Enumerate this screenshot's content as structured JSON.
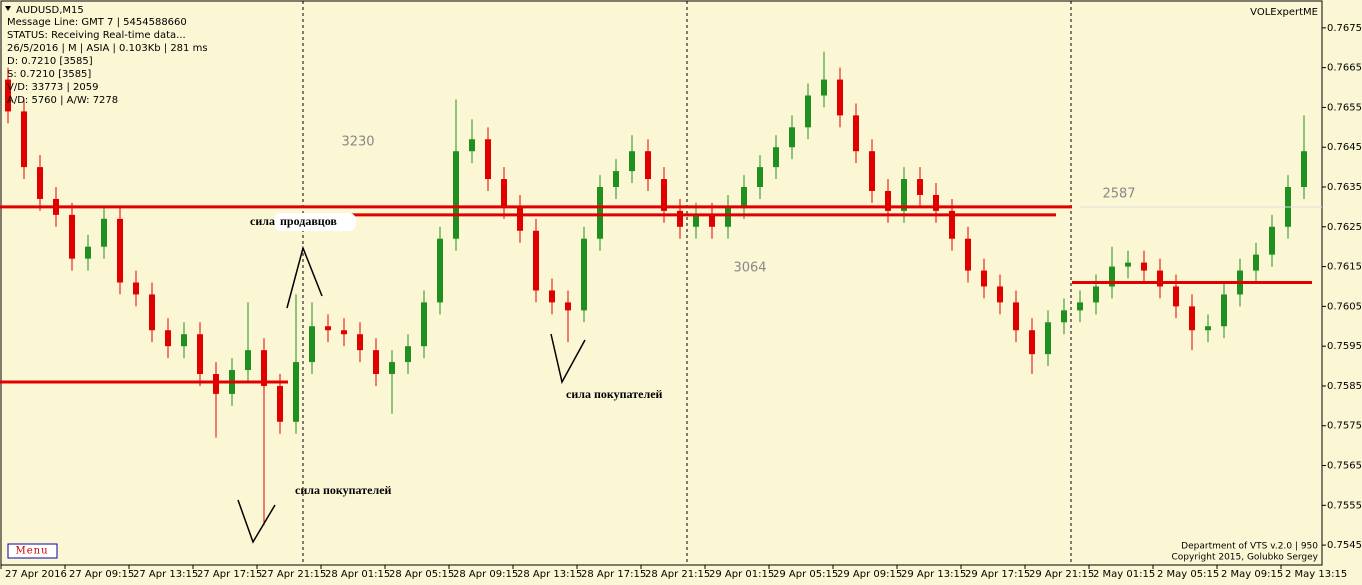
{
  "chart_data": {
    "type": "candlestick",
    "symbol": "AUDUSD,M15",
    "info_lines": [
      "Message Line: GMT 7 | 5454588660",
      "STATUS:  Receiving Real-time data...",
      "26/5/2016 | M | ASIA | 0.103Kb | 281 ms",
      "D: 0.7210  [3585]",
      "S: 0.7210  [3585]",
      "V/D: 33773 | 2059",
      "A/D: 5760 | A/W: 7278"
    ],
    "brand": "VOLExpertME",
    "footer": [
      "Department of VTS  v.2.0 | 950",
      "Copyright 2015, Golubko Sergey"
    ],
    "menu": "Menu",
    "up_color": "#1f8f1f",
    "down_color": "#e00000",
    "level_color": "#e00000",
    "ylim": [
      0.754,
      0.7682
    ],
    "yticks": [
      0.7545,
      0.7555,
      0.7565,
      0.7575,
      0.7585,
      0.7595,
      0.7605,
      0.7615,
      0.7625,
      0.7635,
      0.7645,
      0.7655,
      0.7665,
      0.7675
    ],
    "x_labels": [
      "27 Apr 2016",
      "27 Apr 09:15",
      "27 Apr 13:15",
      "27 Apr 17:15",
      "27 Apr 21:15",
      "28 Apr 01:15",
      "28 Apr 05:15",
      "28 Apr 09:15",
      "28 Apr 13:15",
      "28 Apr 17:15",
      "28 Apr 21:15",
      "29 Apr 01:15",
      "29 Apr 05:15",
      "29 Apr 09:15",
      "29 Apr 13:15",
      "29 Apr 17:15",
      "29 Apr 21:15",
      "2 May 01:15",
      "2 May 05:15",
      "2 May 09:15",
      "2 May 13:15"
    ],
    "ohlc": [
      [
        0.7662,
        0.7665,
        0.7651,
        0.7654
      ],
      [
        0.7654,
        0.7657,
        0.7637,
        0.764
      ],
      [
        0.764,
        0.7643,
        0.7629,
        0.7632
      ],
      [
        0.7632,
        0.7635,
        0.7625,
        0.7628
      ],
      [
        0.7628,
        0.7631,
        0.7614,
        0.7617
      ],
      [
        0.7617,
        0.7623,
        0.7614,
        0.762
      ],
      [
        0.762,
        0.763,
        0.7617,
        0.7627
      ],
      [
        0.7627,
        0.763,
        0.7608,
        0.7611
      ],
      [
        0.7611,
        0.7614,
        0.7605,
        0.7608
      ],
      [
        0.7608,
        0.7611,
        0.7596,
        0.7599
      ],
      [
        0.7599,
        0.7602,
        0.7592,
        0.7595
      ],
      [
        0.7595,
        0.7601,
        0.7592,
        0.7598
      ],
      [
        0.7598,
        0.7601,
        0.7585,
        0.7588
      ],
      [
        0.7588,
        0.7591,
        0.7572,
        0.7583
      ],
      [
        0.7583,
        0.7592,
        0.758,
        0.7589
      ],
      [
        0.7589,
        0.7606,
        0.7586,
        0.7594
      ],
      [
        0.7594,
        0.7597,
        0.755,
        0.7585
      ],
      [
        0.7585,
        0.7588,
        0.7573,
        0.7576
      ],
      [
        0.7576,
        0.7608,
        0.7573,
        0.7591
      ],
      [
        0.7591,
        0.7606,
        0.7588,
        0.76
      ],
      [
        0.76,
        0.7603,
        0.7596,
        0.7599
      ],
      [
        0.7599,
        0.7602,
        0.7595,
        0.7598
      ],
      [
        0.7598,
        0.7601,
        0.7591,
        0.7594
      ],
      [
        0.7594,
        0.7597,
        0.7585,
        0.7588
      ],
      [
        0.7588,
        0.7594,
        0.7578,
        0.7591
      ],
      [
        0.7591,
        0.7598,
        0.7588,
        0.7595
      ],
      [
        0.7595,
        0.7609,
        0.7592,
        0.7606
      ],
      [
        0.7606,
        0.7625,
        0.7603,
        0.7622
      ],
      [
        0.7622,
        0.7657,
        0.7619,
        0.7644
      ],
      [
        0.7644,
        0.7652,
        0.7641,
        0.7647
      ],
      [
        0.7647,
        0.765,
        0.7634,
        0.7637
      ],
      [
        0.7637,
        0.764,
        0.7627,
        0.763
      ],
      [
        0.763,
        0.7633,
        0.7621,
        0.7624
      ],
      [
        0.7624,
        0.7627,
        0.7606,
        0.7609
      ],
      [
        0.7609,
        0.7612,
        0.7603,
        0.7606
      ],
      [
        0.7606,
        0.7609,
        0.7596,
        0.7604
      ],
      [
        0.7604,
        0.7625,
        0.7601,
        0.7622
      ],
      [
        0.7622,
        0.7638,
        0.7619,
        0.7635
      ],
      [
        0.7635,
        0.7642,
        0.7632,
        0.7639
      ],
      [
        0.7639,
        0.7648,
        0.7636,
        0.7644
      ],
      [
        0.7644,
        0.7647,
        0.7634,
        0.7637
      ],
      [
        0.7637,
        0.764,
        0.7626,
        0.7629
      ],
      [
        0.7629,
        0.7632,
        0.7622,
        0.7625
      ],
      [
        0.7625,
        0.7631,
        0.7622,
        0.7628
      ],
      [
        0.7628,
        0.7631,
        0.7622,
        0.7625
      ],
      [
        0.7625,
        0.7633,
        0.7622,
        0.763
      ],
      [
        0.763,
        0.7638,
        0.7627,
        0.7635
      ],
      [
        0.7635,
        0.7643,
        0.7632,
        0.764
      ],
      [
        0.764,
        0.7648,
        0.7637,
        0.7645
      ],
      [
        0.7645,
        0.7653,
        0.7642,
        0.765
      ],
      [
        0.765,
        0.7661,
        0.7647,
        0.7658
      ],
      [
        0.7658,
        0.7669,
        0.7655,
        0.7662
      ],
      [
        0.7662,
        0.7665,
        0.765,
        0.7653
      ],
      [
        0.7653,
        0.7656,
        0.7641,
        0.7644
      ],
      [
        0.7644,
        0.7647,
        0.7631,
        0.7634
      ],
      [
        0.7634,
        0.7637,
        0.7626,
        0.7629
      ],
      [
        0.7629,
        0.764,
        0.7626,
        0.7637
      ],
      [
        0.7637,
        0.764,
        0.763,
        0.7633
      ],
      [
        0.7633,
        0.7636,
        0.7626,
        0.7629
      ],
      [
        0.7629,
        0.7632,
        0.7619,
        0.7622
      ],
      [
        0.7622,
        0.7625,
        0.7611,
        0.7614
      ],
      [
        0.7614,
        0.7617,
        0.7607,
        0.761
      ],
      [
        0.761,
        0.7613,
        0.7603,
        0.7606
      ],
      [
        0.7606,
        0.7609,
        0.7596,
        0.7599
      ],
      [
        0.7599,
        0.7602,
        0.7588,
        0.7593
      ],
      [
        0.7593,
        0.7604,
        0.759,
        0.7601
      ],
      [
        0.7601,
        0.7607,
        0.7598,
        0.7604
      ],
      [
        0.7604,
        0.7609,
        0.7601,
        0.7606
      ],
      [
        0.7606,
        0.7613,
        0.7603,
        0.761
      ],
      [
        0.761,
        0.762,
        0.7607,
        0.7615
      ],
      [
        0.7615,
        0.7619,
        0.7612,
        0.7616
      ],
      [
        0.7616,
        0.7619,
        0.7611,
        0.7614
      ],
      [
        0.7614,
        0.7617,
        0.7607,
        0.761
      ],
      [
        0.761,
        0.7613,
        0.7602,
        0.7605
      ],
      [
        0.7605,
        0.7608,
        0.7594,
        0.7599
      ],
      [
        0.7599,
        0.7603,
        0.7596,
        0.76
      ],
      [
        0.76,
        0.7611,
        0.7597,
        0.7608
      ],
      [
        0.7608,
        0.7617,
        0.7605,
        0.7614
      ],
      [
        0.7614,
        0.7621,
        0.7611,
        0.7618
      ],
      [
        0.7618,
        0.7628,
        0.7615,
        0.7625
      ],
      [
        0.7625,
        0.7638,
        0.7622,
        0.7635
      ],
      [
        0.7635,
        0.7653,
        0.7632,
        0.7644
      ]
    ],
    "levels": [
      {
        "value": 0.763,
        "from": 0,
        "to": 67
      },
      {
        "value": 0.7628,
        "from": 19,
        "to": 66
      },
      {
        "value": 0.7586,
        "from": 0,
        "to": 18
      },
      {
        "value": 0.7611,
        "from": 67,
        "to": 82
      }
    ],
    "annotations": [
      "3230",
      "3064",
      "2587",
      "сила",
      "продавцов",
      "сила покупателей",
      "сила покупателей"
    ]
  }
}
